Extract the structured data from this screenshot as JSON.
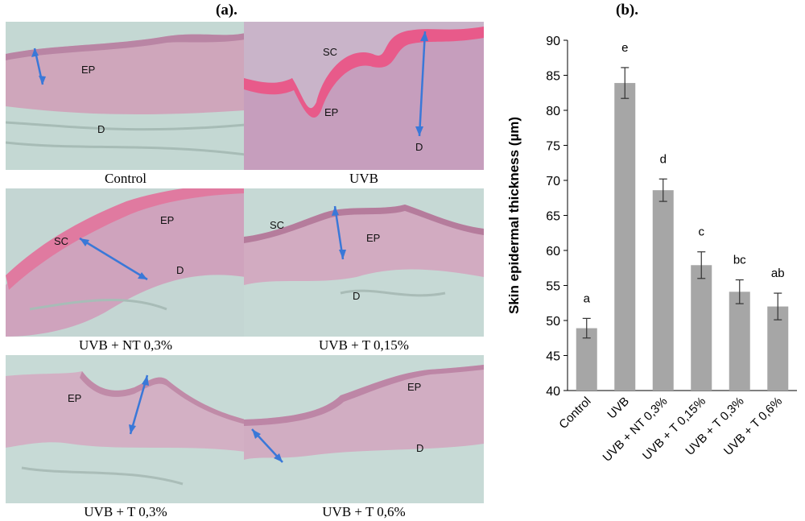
{
  "panel_a": {
    "title": "(a).",
    "images": [
      {
        "caption": "Control",
        "labels": [
          "EP",
          "D"
        ]
      },
      {
        "caption": "UVB",
        "labels": [
          "SC",
          "EP",
          "D"
        ]
      },
      {
        "caption": "UVB + NT 0,3%",
        "labels": [
          "EP",
          "SC",
          "D"
        ]
      },
      {
        "caption": "UVB + T 0,15%",
        "labels": [
          "SC",
          "EP",
          "D"
        ]
      },
      {
        "caption": "UVB + T 0,3%",
        "labels": [
          "EP"
        ]
      },
      {
        "caption": "UVB + T 0,6%",
        "labels": [
          "EP",
          "D"
        ]
      }
    ]
  },
  "panel_b": {
    "title": "(b)."
  },
  "colors": {
    "bar": "#a6a6a6",
    "tissue_bg": "#c5d9d4",
    "epidermis": "#c88aa8",
    "stratum_corneum": "#e85a8a",
    "arrow": "#3a78d8"
  },
  "chart_data": {
    "type": "bar",
    "categories": [
      "Control",
      "UVB",
      "UVB + NT 0,3%",
      "UVB + T 0,15%",
      "UVB + T 0,3%",
      "UVB + T 0,6%"
    ],
    "values": [
      48.9,
      83.9,
      68.6,
      57.9,
      54.1,
      52.0
    ],
    "errors": [
      1.4,
      2.2,
      1.6,
      1.9,
      1.7,
      1.9
    ],
    "significance_letters": [
      "a",
      "e",
      "d",
      "c",
      "bc",
      "ab"
    ],
    "ylabel": "Skin epidermal thickness (µm)",
    "xlabel": "",
    "ylim": [
      40,
      90
    ],
    "yticks": [
      "40",
      "45",
      "50",
      "55",
      "60",
      "65",
      "70",
      "75",
      "80",
      "85",
      "90"
    ],
    "grid": false,
    "legend": "none"
  }
}
